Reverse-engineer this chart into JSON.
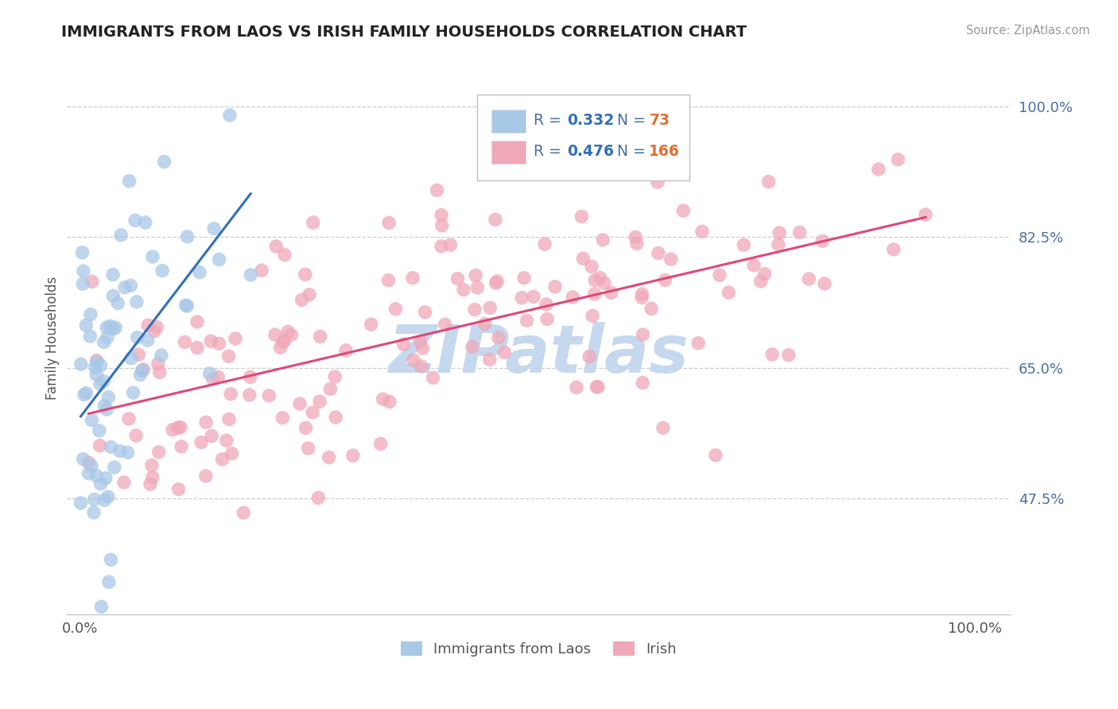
{
  "title": "IMMIGRANTS FROM LAOS VS IRISH FAMILY HOUSEHOLDS CORRELATION CHART",
  "source": "Source: ZipAtlas.com",
  "ylabel": "Family Households",
  "right_ytick_labels": [
    "47.5%",
    "65.0%",
    "82.5%",
    "100.0%"
  ],
  "right_ytick_values": [
    0.475,
    0.65,
    0.825,
    1.0
  ],
  "xlim": [
    -0.015,
    1.04
  ],
  "ylim": [
    0.32,
    1.06
  ],
  "blue_R": 0.332,
  "blue_N": 73,
  "pink_R": 0.476,
  "pink_N": 166,
  "blue_color": "#a8c8e8",
  "pink_color": "#f0a8b8",
  "blue_line_color": "#3070b8",
  "pink_line_color": "#e04878",
  "blue_label": "Immigrants from Laos",
  "pink_label": "Irish",
  "watermark": "ZIPatlas",
  "watermark_color": "#c5d8ee",
  "background_color": "#ffffff",
  "title_color": "#222222",
  "right_label_color": "#4a6fa5",
  "grid_color": "#c8c8c8",
  "legend_R_color": "#3070b8",
  "legend_N_color": "#e07030",
  "legend_border_color": "#c0c0c0",
  "blue_seed": 7,
  "pink_seed": 21
}
